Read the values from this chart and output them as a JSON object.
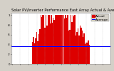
{
  "title": "Solar PV/Inverter Performance East Array Actual & Average Power Output",
  "title_fontsize": 3.8,
  "bg_color": "#d4d0c8",
  "plot_bg_color": "#ffffff",
  "grid_color": "#b0b0b0",
  "bar_color": "#dd0000",
  "avg_line_color": "#0000ff",
  "avg_line_value": 0.36,
  "ylim": [
    0,
    1.05
  ],
  "num_bars": 96,
  "legend_actual_color": "#dd0000",
  "legend_avg_color": "#0000ff",
  "legend_fontsize": 3.2,
  "tick_fontsize": 2.8,
  "ytick_labels": [
    "0",
    ".2",
    ".4",
    ".6",
    ".8",
    "1"
  ],
  "ytick_values": [
    0,
    0.2,
    0.4,
    0.6,
    0.8,
    1.0
  ]
}
